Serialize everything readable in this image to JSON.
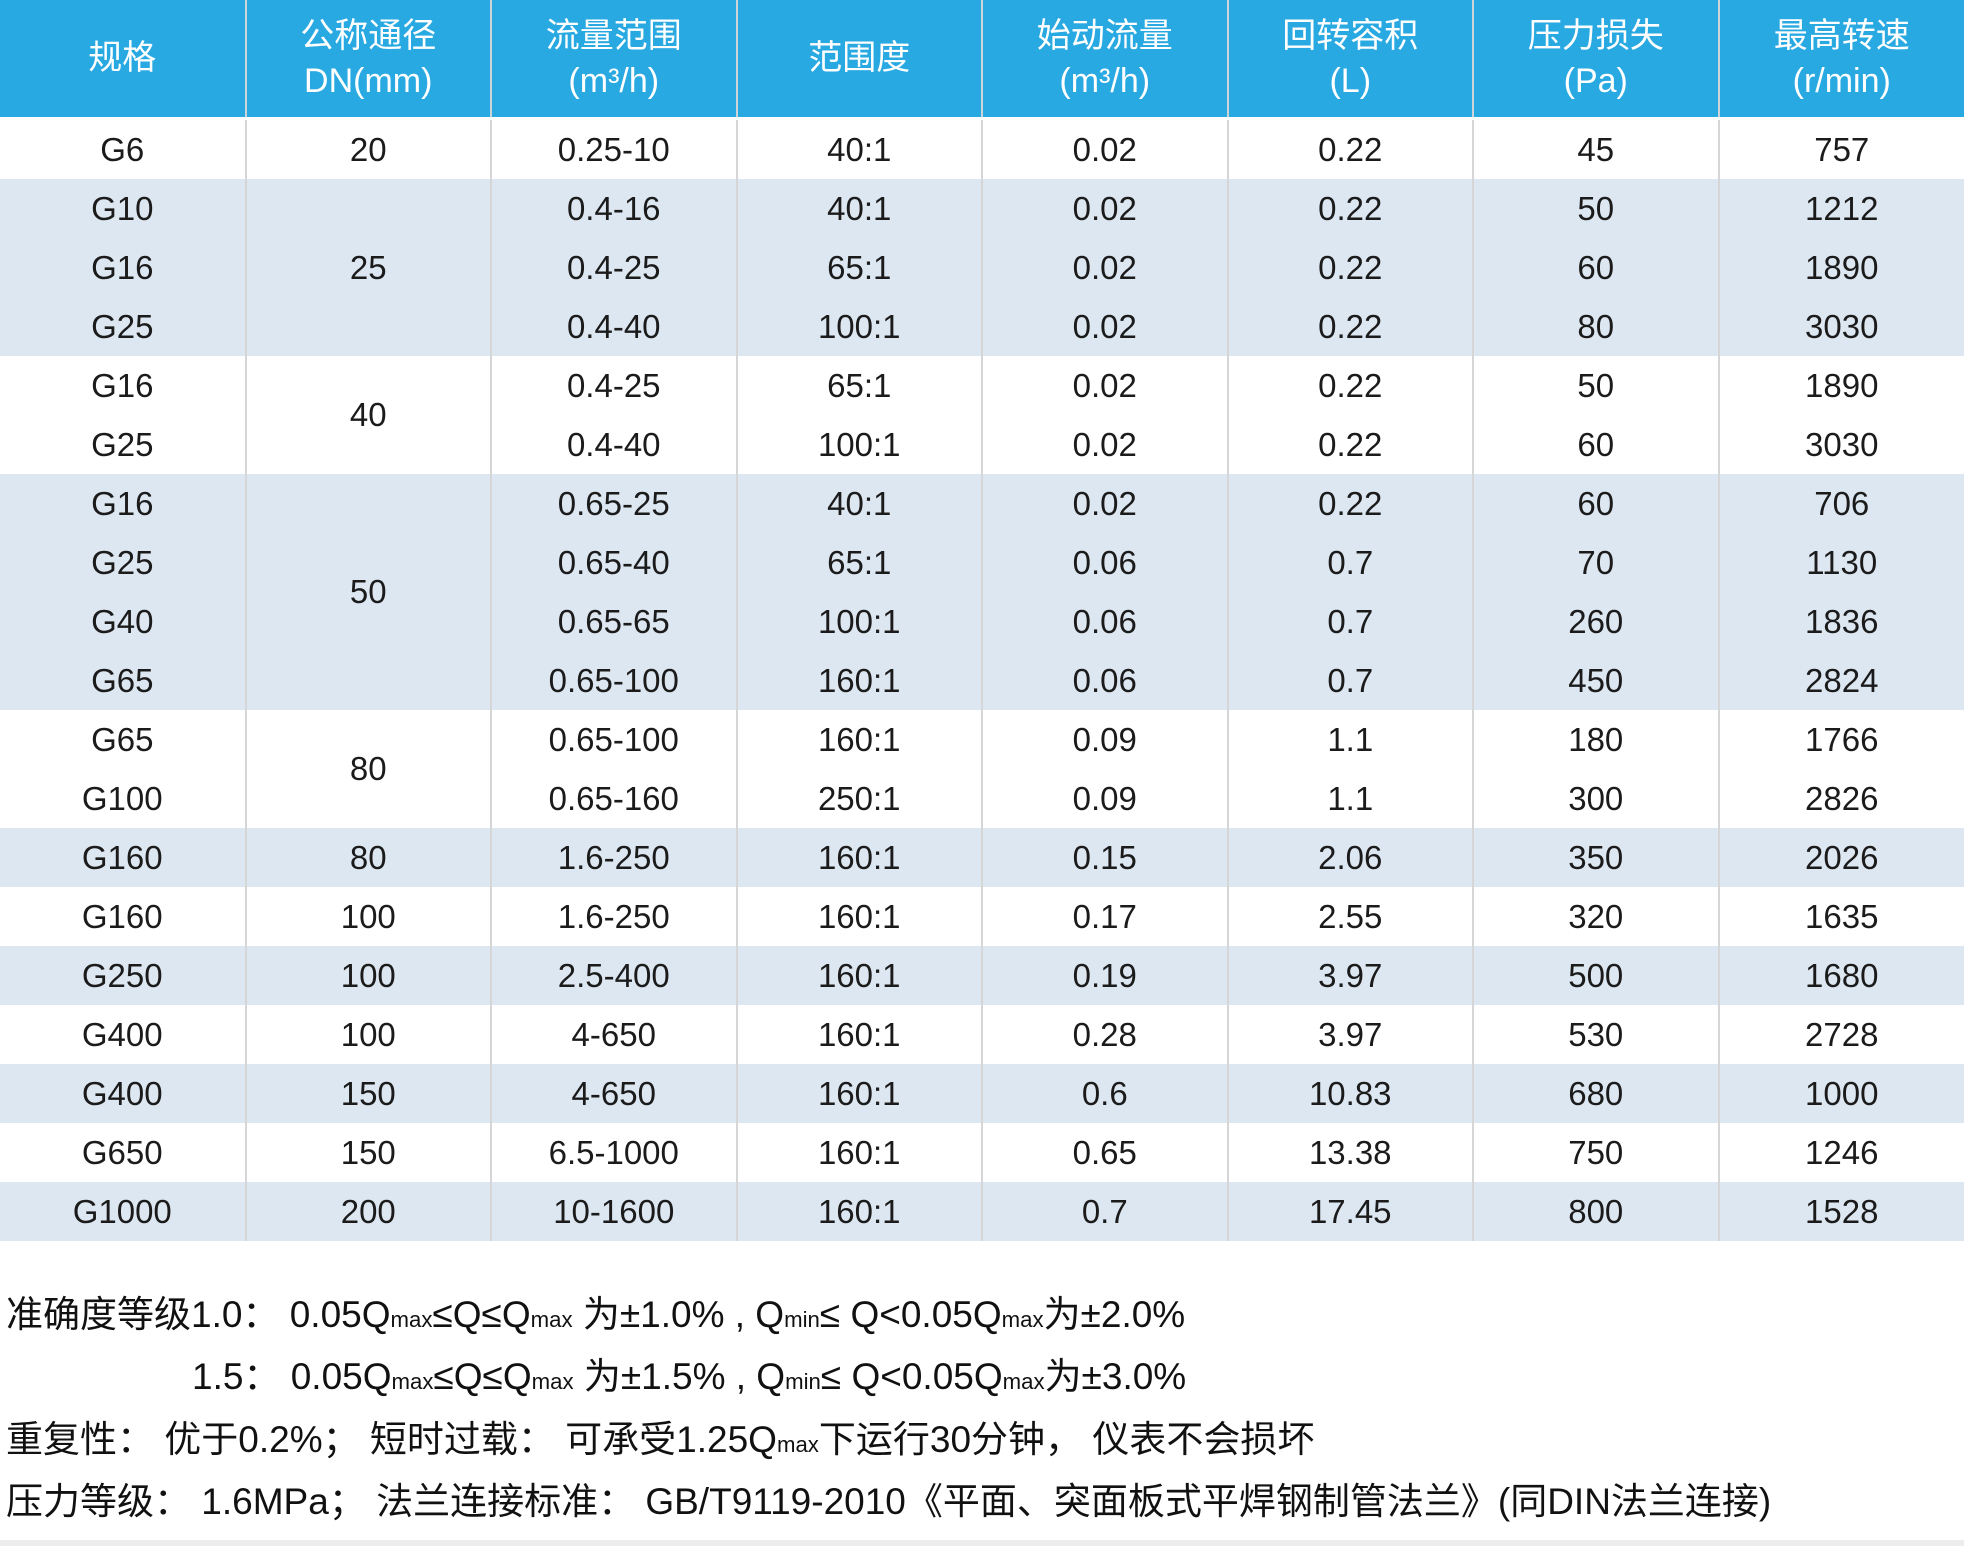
{
  "table": {
    "headers": [
      {
        "name": "spec",
        "label": "规格"
      },
      {
        "name": "dn",
        "label": "公称通径\nDN(mm)"
      },
      {
        "name": "flow",
        "label": "流量范围\n(m³/h)"
      },
      {
        "name": "range",
        "label": "范围度"
      },
      {
        "name": "start",
        "label": "始动流量\n(m³/h)"
      },
      {
        "name": "volume",
        "label": "回转容积\n(L)"
      },
      {
        "name": "pressure",
        "label": "压力损失\n(Pa)"
      },
      {
        "name": "speed",
        "label": "最高转速\n(r/min)"
      }
    ],
    "rows": [
      {
        "spec": "G6",
        "dn": "20",
        "dn_rowspan": 1,
        "flow": "0.25-10",
        "range": "40:1",
        "start": "0.02",
        "volume": "0.22",
        "pressure": "45",
        "speed": "757",
        "shade": false
      },
      {
        "spec": "G10",
        "dn": "25",
        "dn_rowspan": 3,
        "flow": "0.4-16",
        "range": "40:1",
        "start": "0.02",
        "volume": "0.22",
        "pressure": "50",
        "speed": "1212",
        "shade": true
      },
      {
        "spec": "G16",
        "dn": null,
        "dn_rowspan": 0,
        "flow": "0.4-25",
        "range": "65:1",
        "start": "0.02",
        "volume": "0.22",
        "pressure": "60",
        "speed": "1890",
        "shade": true
      },
      {
        "spec": "G25",
        "dn": null,
        "dn_rowspan": 0,
        "flow": "0.4-40",
        "range": "100:1",
        "start": "0.02",
        "volume": "0.22",
        "pressure": "80",
        "speed": "3030",
        "shade": true
      },
      {
        "spec": "G16",
        "dn": "40",
        "dn_rowspan": 2,
        "flow": "0.4-25",
        "range": "65:1",
        "start": "0.02",
        "volume": "0.22",
        "pressure": "50",
        "speed": "1890",
        "shade": false
      },
      {
        "spec": "G25",
        "dn": null,
        "dn_rowspan": 0,
        "flow": "0.4-40",
        "range": "100:1",
        "start": "0.02",
        "volume": "0.22",
        "pressure": "60",
        "speed": "3030",
        "shade": false
      },
      {
        "spec": "G16",
        "dn": "50",
        "dn_rowspan": 4,
        "flow": "0.65-25",
        "range": "40:1",
        "start": "0.02",
        "volume": "0.22",
        "pressure": "60",
        "speed": "706",
        "shade": true
      },
      {
        "spec": "G25",
        "dn": null,
        "dn_rowspan": 0,
        "flow": "0.65-40",
        "range": "65:1",
        "start": "0.06",
        "volume": "0.7",
        "pressure": "70",
        "speed": "1130",
        "shade": true
      },
      {
        "spec": "G40",
        "dn": null,
        "dn_rowspan": 0,
        "flow": "0.65-65",
        "range": "100:1",
        "start": "0.06",
        "volume": "0.7",
        "pressure": "260",
        "speed": "1836",
        "shade": true
      },
      {
        "spec": "G65",
        "dn": null,
        "dn_rowspan": 0,
        "flow": "0.65-100",
        "range": "160:1",
        "start": "0.06",
        "volume": "0.7",
        "pressure": "450",
        "speed": "2824",
        "shade": true
      },
      {
        "spec": "G65",
        "dn": "80",
        "dn_rowspan": 2,
        "flow": "0.65-100",
        "range": "160:1",
        "start": "0.09",
        "volume": "1.1",
        "pressure": "180",
        "speed": "1766",
        "shade": false
      },
      {
        "spec": "G100",
        "dn": null,
        "dn_rowspan": 0,
        "flow": "0.65-160",
        "range": "250:1",
        "start": "0.09",
        "volume": "1.1",
        "pressure": "300",
        "speed": "2826",
        "shade": false
      },
      {
        "spec": "G160",
        "dn": "80",
        "dn_rowspan": 1,
        "flow": "1.6-250",
        "range": "160:1",
        "start": "0.15",
        "volume": "2.06",
        "pressure": "350",
        "speed": "2026",
        "shade": true
      },
      {
        "spec": "G160",
        "dn": "100",
        "dn_rowspan": 1,
        "flow": "1.6-250",
        "range": "160:1",
        "start": "0.17",
        "volume": "2.55",
        "pressure": "320",
        "speed": "1635",
        "shade": false
      },
      {
        "spec": "G250",
        "dn": "100",
        "dn_rowspan": 1,
        "flow": "2.5-400",
        "range": "160:1",
        "start": "0.19",
        "volume": "3.97",
        "pressure": "500",
        "speed": "1680",
        "shade": true
      },
      {
        "spec": "G400",
        "dn": "100",
        "dn_rowspan": 1,
        "flow": "4-650",
        "range": "160:1",
        "start": "0.28",
        "volume": "3.97",
        "pressure": "530",
        "speed": "2728",
        "shade": false
      },
      {
        "spec": "G400",
        "dn": "150",
        "dn_rowspan": 1,
        "flow": "4-650",
        "range": "160:1",
        "start": "0.6",
        "volume": "10.83",
        "pressure": "680",
        "speed": "1000",
        "shade": true
      },
      {
        "spec": "G650",
        "dn": "150",
        "dn_rowspan": 1,
        "flow": "6.5-1000",
        "range": "160:1",
        "start": "0.65",
        "volume": "13.38",
        "pressure": "750",
        "speed": "1246",
        "shade": false
      },
      {
        "spec": "G1000",
        "dn": "200",
        "dn_rowspan": 1,
        "flow": "10-1600",
        "range": "160:1",
        "start": "0.7",
        "volume": "17.45",
        "pressure": "800",
        "speed": "1528",
        "shade": true
      }
    ]
  },
  "footer": {
    "lines": [
      {
        "indent": false,
        "segments": [
          {
            "t": "准确度等级1.0： 0.05Q"
          },
          {
            "t": "max",
            "sub": true
          },
          {
            "t": "≤Q≤Q"
          },
          {
            "t": "max",
            "sub": true
          },
          {
            "t": " 为±1.0% , Q"
          },
          {
            "t": "min",
            "sub": true
          },
          {
            "t": "≤ Q<0.05Q"
          },
          {
            "t": "max",
            "sub": true
          },
          {
            "t": "为±2.0%"
          }
        ]
      },
      {
        "indent": true,
        "segments": [
          {
            "t": "1.5： 0.05Q"
          },
          {
            "t": "max",
            "sub": true
          },
          {
            "t": "≤Q≤Q"
          },
          {
            "t": "max",
            "sub": true
          },
          {
            "t": " 为±1.5% , Q"
          },
          {
            "t": "min",
            "sub": true
          },
          {
            "t": "≤ Q<0.05Q"
          },
          {
            "t": "max",
            "sub": true
          },
          {
            "t": "为±3.0%"
          }
        ]
      },
      {
        "indent": false,
        "segments": [
          {
            "t": "重复性： 优于0.2%； 短时过载： 可承受1.25Q"
          },
          {
            "t": "max",
            "sub": true
          },
          {
            "t": "下运行30分钟， 仪表不会损坏"
          }
        ]
      },
      {
        "indent": false,
        "segments": [
          {
            "t": "压力等级： 1.6MPa； 法兰连接标准： GB/T9119-2010《平面、突面板式平焊钢制管法兰》(同DIN法兰连接)"
          }
        ]
      }
    ]
  },
  "colors": {
    "header_bg": "#29A9E1",
    "header_text": "#ffffff",
    "shade_row_bg": "#DDE7F1",
    "row_bg": "#ffffff",
    "grid_line": "#d6d6d6",
    "body_text": "#1b1b1b"
  }
}
